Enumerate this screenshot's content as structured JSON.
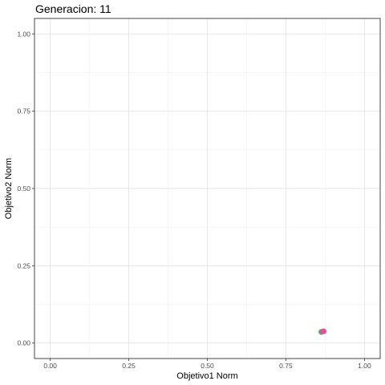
{
  "chart_data": {
    "type": "scatter",
    "title": "Generacion: 11",
    "xlabel": "Objetivo1 Norm",
    "ylabel": "Objetivo2 Norm",
    "xlim": [
      -0.05,
      1.05
    ],
    "ylim": [
      -0.05,
      1.05
    ],
    "x_ticks": [
      0.0,
      0.25,
      0.5,
      0.75,
      1.0
    ],
    "y_ticks": [
      0.0,
      0.25,
      0.5,
      0.75,
      1.0
    ],
    "x_tick_labels": [
      "0.00",
      "0.25",
      "0.50",
      "0.75",
      "1.00"
    ],
    "y_tick_labels": [
      "0.00",
      "0.25",
      "0.50",
      "0.75",
      "1.00"
    ],
    "grid": true,
    "legend": "none",
    "points": [
      {
        "x": 0.863,
        "y": 0.036,
        "color": "#5aa36b"
      },
      {
        "x": 0.87,
        "y": 0.038,
        "color": "#e64fa0"
      }
    ]
  }
}
